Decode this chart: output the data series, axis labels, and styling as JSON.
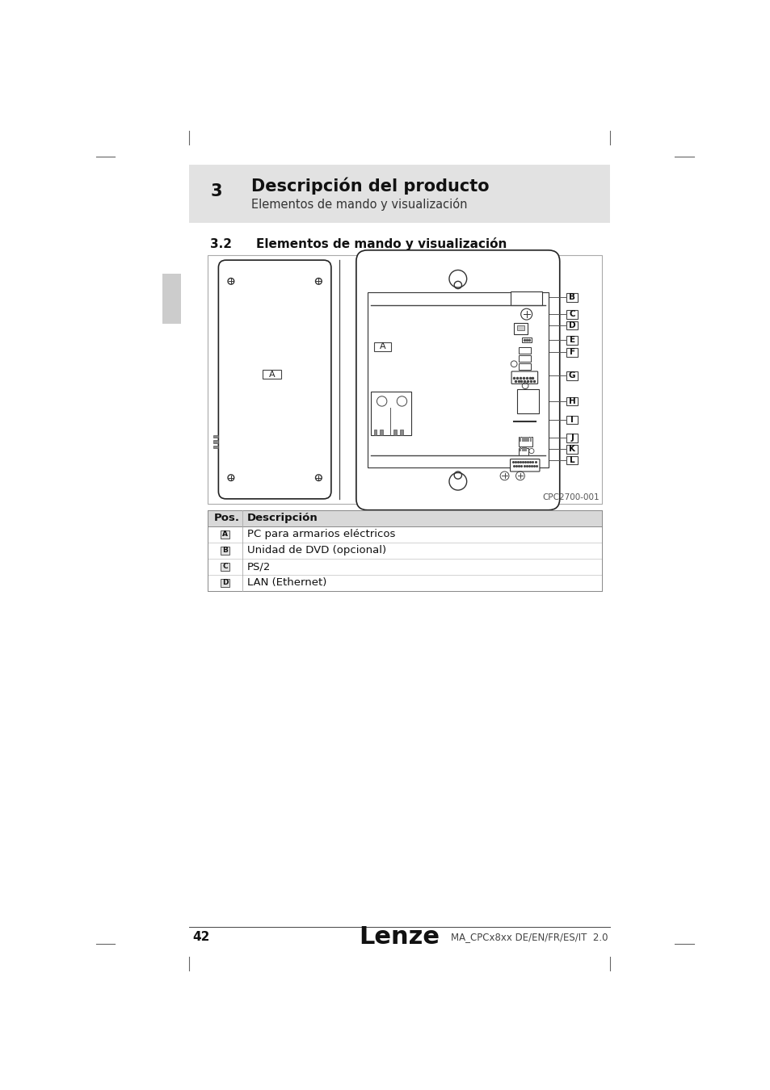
{
  "page_bg": "#ffffff",
  "header_bg": "#e2e2e2",
  "header_number": "3",
  "header_title": "Descripción del producto",
  "header_subtitle": "Elementos de mando y visualización",
  "section_number": "3.2",
  "section_title": "Elementos de mando y visualización",
  "table_header_bg": "#d8d8d8",
  "table_row_bg": "#ffffff",
  "table_alt_bg": "#f5f5f5",
  "table_cols": [
    "Pos.",
    "Descripción"
  ],
  "table_rows": [
    [
      "A",
      "PC para armarios eléctricos"
    ],
    [
      "B",
      "Unidad de DVD (opcional)"
    ],
    [
      "C",
      "PS/2"
    ],
    [
      "D",
      "LAN (Ethernet)"
    ]
  ],
  "diagram_caption": "CPC2700-001",
  "footer_page": "42",
  "footer_brand": "Lenze",
  "footer_doc": "MA_CPCx8xx DE/EN/FR/ES/IT  2.0",
  "ml": 148,
  "mr": 820
}
